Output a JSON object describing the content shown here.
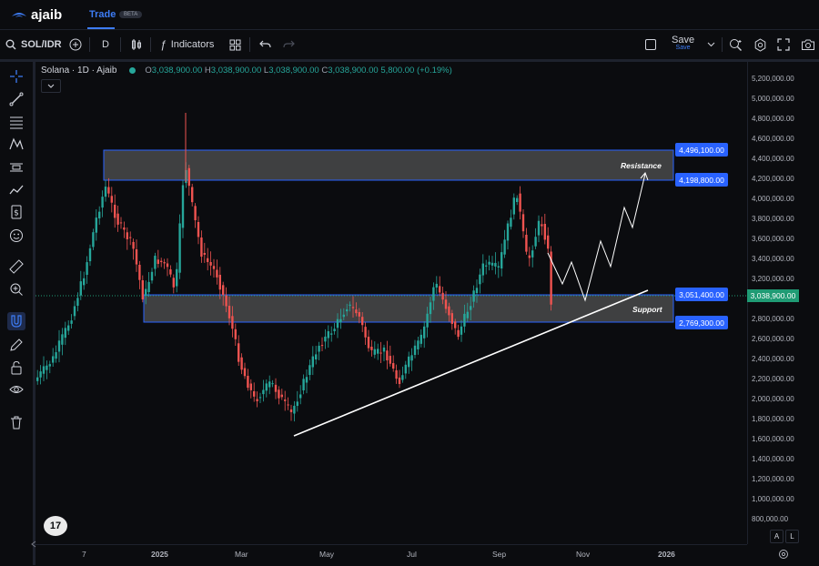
{
  "app": {
    "brand": "ajaib",
    "tab": "Trade",
    "badge": "BETA"
  },
  "toolbar": {
    "symbol": "SOL/IDR",
    "interval": "D",
    "indicators_label": "Indicators",
    "save_label": "Save",
    "save_sub": "Save"
  },
  "legend": {
    "title": "Solana · 1D · Ajaib",
    "open_label": "O",
    "open": "3,038,900.00",
    "high_label": "H",
    "high": "3,038,900.00",
    "low_label": "L",
    "low": "3,038,900.00",
    "close_label": "C",
    "close": "3,038,900.00",
    "change": "5,800.00 (+0.19%)"
  },
  "annotations": {
    "resistance": "Resistance",
    "support": "Support"
  },
  "level_tags": {
    "r_top": "4,496,100.00",
    "r_bottom": "4,198,800.00",
    "s_top": "3,051,400.00",
    "s_bottom": "2,769,300.00"
  },
  "current_price": "3,038,900.00",
  "price_axis": [
    "5,200,000.00",
    "5,000,000.00",
    "4,800,000.00",
    "4,600,000.00",
    "4,400,000.00",
    "4,200,000.00",
    "4,000,000.00",
    "3,800,000.00",
    "3,600,000.00",
    "3,400,000.00",
    "3,200,000.00",
    "2,800,000.00",
    "2,600,000.00",
    "2,400,000.00",
    "2,200,000.00",
    "2,000,000.00",
    "1,800,000.00",
    "1,600,000.00",
    "1,400,000.00",
    "1,200,000.00",
    "1,000,000.00",
    "800,000.00"
  ],
  "time_axis": [
    "7",
    "2025",
    "Mar",
    "May",
    "Jul",
    "Sep",
    "Nov",
    "2026"
  ],
  "axis_buttons": {
    "auto": "A",
    "log": "L"
  },
  "tv_logo": "17",
  "colors": {
    "up": "#26a69a",
    "down": "#ef5350",
    "accent": "#2962ff",
    "current": "#1f9b74"
  }
}
